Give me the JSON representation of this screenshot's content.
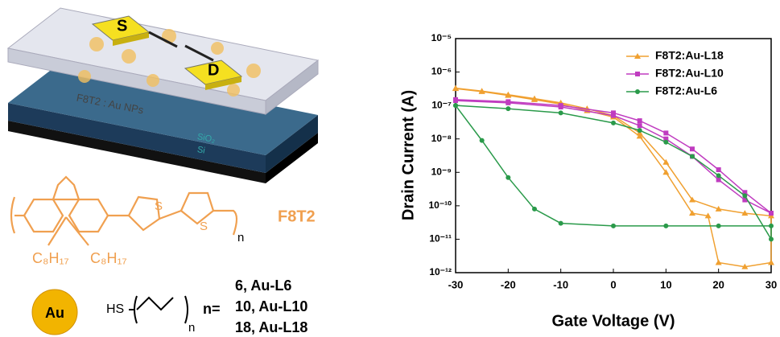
{
  "diagram": {
    "source": "S",
    "drain": "D",
    "active_layer": "F8T2 : Au NPs",
    "dielectric": "SiO₂",
    "substrate": "Si",
    "polymer_name": "F8T2",
    "side_chain_left": "C₈H₁₇",
    "side_chain_right": "C₈H₁₇",
    "thiophene_s1": "S",
    "thiophene_s2": "S",
    "repeat_n": "n",
    "gold": "Au",
    "thiol": "HS",
    "ligand_n": "n",
    "n_equals": "n=",
    "ligands": [
      "6, Au-L6",
      "10, Au-L10",
      "18, Au-L18"
    ]
  },
  "chart_data": {
    "type": "line",
    "xlabel": "Gate Voltage (V)",
    "ylabel": "Drain Current (A)",
    "xlim": [
      -30,
      30
    ],
    "xticks": [
      -30,
      -20,
      -10,
      0,
      10,
      20,
      30
    ],
    "yscale": "log",
    "ylim": [
      1e-12,
      1e-05
    ],
    "yticks": [
      {
        "value": 1e-12,
        "label": "10⁻¹²"
      },
      {
        "value": 1e-11,
        "label": "10⁻¹¹"
      },
      {
        "value": 1e-10,
        "label": "10⁻¹⁰"
      },
      {
        "value": 1e-09,
        "label": "10⁻⁹"
      },
      {
        "value": 1e-08,
        "label": "10⁻⁸"
      },
      {
        "value": 1e-07,
        "label": "10⁻⁷"
      },
      {
        "value": 1e-06,
        "label": "10⁻⁶"
      },
      {
        "value": 1e-05,
        "label": "10⁻⁵"
      }
    ],
    "legend": "upper right",
    "series": [
      {
        "name": "F8T2:Au-L18",
        "color": "#f0a030",
        "marker": "triangle",
        "x": [
          -30,
          -25,
          -20,
          -15,
          -10,
          -5,
          0,
          5,
          10,
          15,
          18,
          20,
          25,
          30,
          30,
          25,
          20,
          15,
          10,
          5,
          0,
          -5,
          -10,
          -15,
          -20,
          -25,
          -30
        ],
        "values": [
          3.2e-07,
          2.6e-07,
          2e-07,
          1.5e-07,
          1.1e-07,
          7e-08,
          4.5e-08,
          1.2e-08,
          1e-09,
          6e-11,
          5e-11,
          2e-12,
          1.5e-12,
          2e-12,
          5e-11,
          6e-11,
          8e-11,
          1.5e-10,
          2e-09,
          1.5e-08,
          5e-08,
          8e-08,
          1.2e-07,
          1.6e-07,
          2.1e-07,
          2.7e-07,
          3.3e-07
        ]
      },
      {
        "name": "F8T2:Au-L10",
        "color": "#c03cc0",
        "marker": "square",
        "x": [
          -30,
          -20,
          -10,
          0,
          5,
          10,
          15,
          20,
          25,
          30,
          30,
          25,
          20,
          15,
          10,
          5,
          0,
          -10,
          -20,
          -30
        ],
        "values": [
          1.5e-07,
          1.3e-07,
          1e-07,
          6e-08,
          3.5e-08,
          1.5e-08,
          5e-09,
          1.2e-09,
          2.5e-10,
          6e-11,
          6e-11,
          1.5e-10,
          6e-10,
          3e-09,
          1e-08,
          2.5e-08,
          5e-08,
          9e-08,
          1.2e-07,
          1.4e-07
        ]
      },
      {
        "name": "F8T2:Au-L6",
        "color": "#2a9a4a",
        "marker": "circle",
        "x": [
          -30,
          -20,
          -10,
          0,
          5,
          10,
          15,
          20,
          25,
          30,
          30,
          20,
          10,
          0,
          -10,
          -15,
          -20,
          -25,
          -30
        ],
        "values": [
          1e-07,
          8e-08,
          6e-08,
          3e-08,
          1.8e-08,
          8e-09,
          3e-09,
          8e-10,
          2e-10,
          1e-11,
          2.5e-11,
          2.5e-11,
          2.5e-11,
          2.5e-11,
          3e-11,
          8e-11,
          7e-10,
          9e-09,
          1e-07
        ]
      }
    ]
  }
}
